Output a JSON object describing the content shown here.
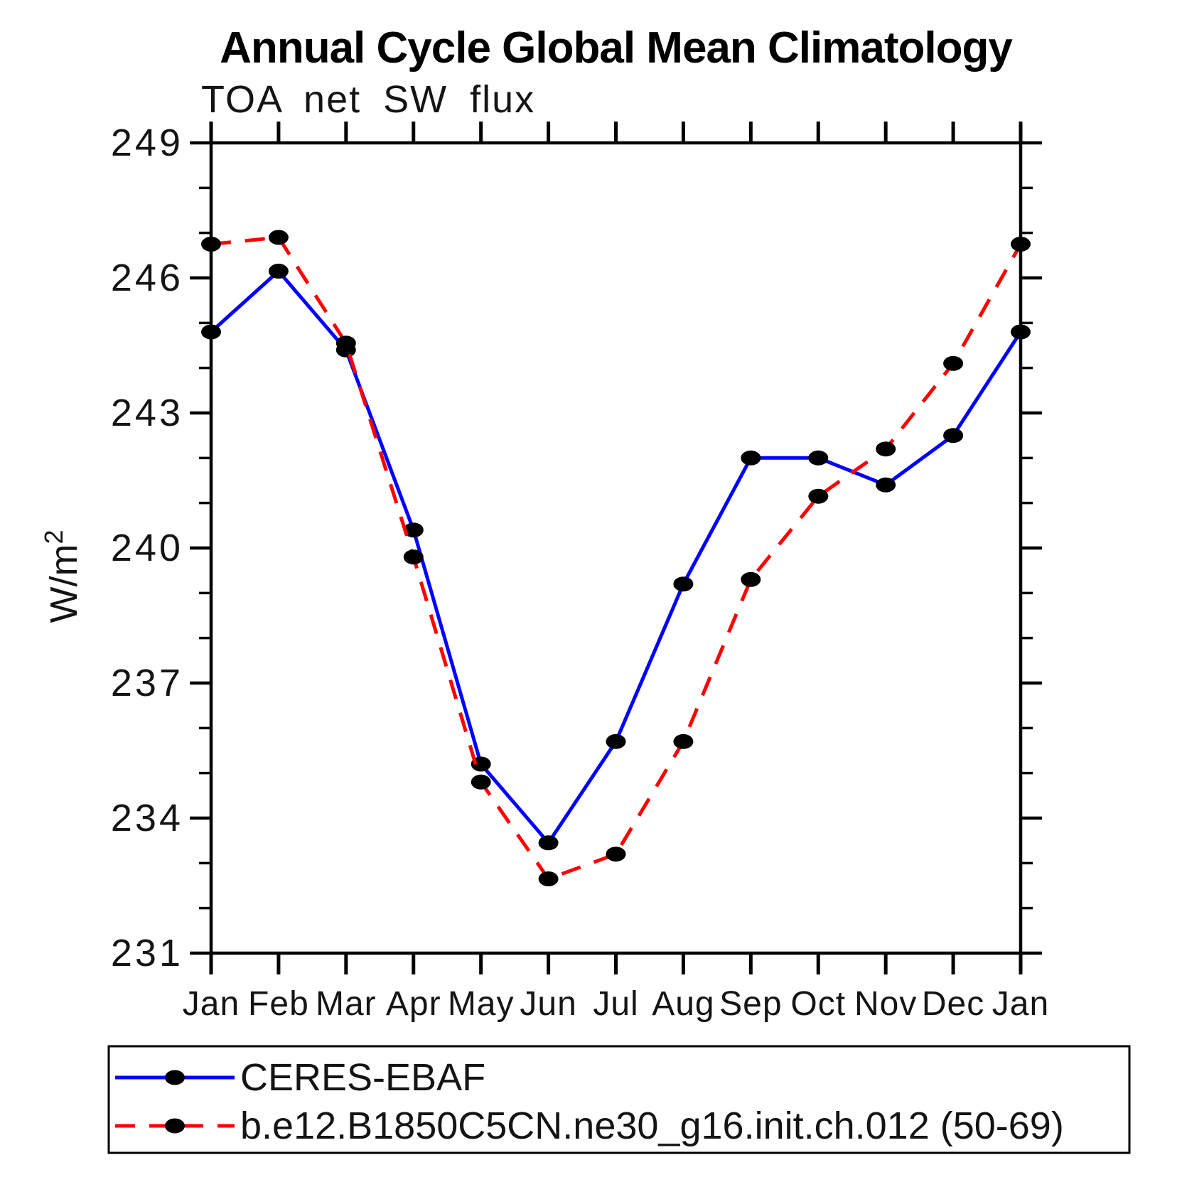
{
  "title": "Annual Cycle Global Mean Climatology",
  "subtitle": "TOA net SW flux",
  "chart_data": {
    "type": "line",
    "title": "Annual Cycle Global Mean Climatology",
    "subtitle": "TOA net SW flux",
    "ylabel_base": "W/m",
    "ylabel_exp": "2",
    "x_categories": [
      "Jan",
      "Feb",
      "Mar",
      "Apr",
      "May",
      "Jun",
      "Jul",
      "Aug",
      "Sep",
      "Oct",
      "Nov",
      "Dec",
      "Jan"
    ],
    "ylim": [
      231,
      249
    ],
    "ytick_major": [
      249,
      246,
      243,
      240,
      237,
      234,
      231
    ],
    "ytick_labels": [
      "249",
      "246",
      "243",
      "240",
      "237",
      "234",
      "231"
    ],
    "ytick_minor_step": 1,
    "grid": false,
    "legend_position": "bottom",
    "series": [
      {
        "name": "CERES-EBAF",
        "color": "#0000ff",
        "style": "solid",
        "marker": "filled-black-ellipse",
        "values": [
          244.8,
          246.15,
          244.4,
          240.4,
          235.2,
          233.45,
          235.7,
          239.2,
          242.0,
          242.0,
          241.4,
          242.5,
          244.8
        ]
      },
      {
        "name": "b.e12.B1850C5CN.ne30_g16.init.ch.012 (50-69)",
        "color": "#ff0000",
        "style": "dashed",
        "marker": "filled-black-ellipse",
        "values": [
          246.75,
          246.9,
          244.55,
          239.8,
          234.8,
          232.65,
          233.2,
          235.7,
          239.3,
          241.15,
          242.2,
          244.1,
          246.75
        ]
      }
    ]
  },
  "colors": {
    "axis": "#000000",
    "marker": "#000000",
    "background": "#ffffff",
    "series_blue": "#0000ff",
    "series_red": "#ff0000"
  }
}
